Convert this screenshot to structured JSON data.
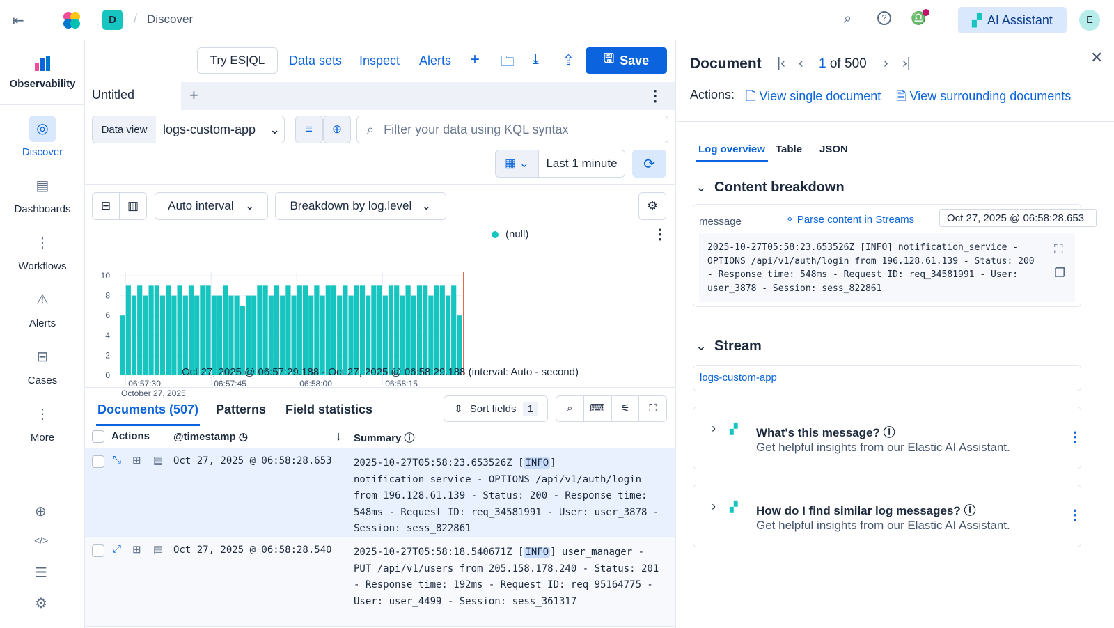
{
  "header": {
    "space_initial": "D",
    "breadcrumb": "Discover",
    "ai_button": "AI Assistant",
    "avatar": "E"
  },
  "nav": {
    "brand": "Observability",
    "items": [
      {
        "label": "Discover",
        "icon": "compass-icon",
        "active": true
      },
      {
        "label": "Dashboards",
        "icon": "dashboard-icon"
      },
      {
        "label": "Workflows",
        "icon": "workflow-icon"
      },
      {
        "label": "Alerts",
        "icon": "warning-icon"
      },
      {
        "label": "Cases",
        "icon": "briefcase-icon"
      },
      {
        "label": "More",
        "icon": "dots-icon"
      }
    ]
  },
  "toolbar": {
    "try_esql": "Try ES|QL",
    "data_sets": "Data sets",
    "inspect": "Inspect",
    "alerts": "Alerts",
    "save": "Save"
  },
  "tab": {
    "title": "Untitled"
  },
  "query": {
    "data_view_label": "Data view",
    "data_view": "logs-custom-app",
    "placeholder": "Filter your data using KQL syntax",
    "time": "Last 1 minute"
  },
  "chart_controls": {
    "interval": "Auto interval",
    "breakdown": "Breakdown by log.level"
  },
  "chart_data": {
    "type": "bar",
    "ylim": [
      0,
      10
    ],
    "yticks": [
      "0",
      "2",
      "4",
      "6",
      "8",
      "10"
    ],
    "xticks": [
      "06:57:30",
      "06:57:45",
      "06:58:00",
      "06:58:15"
    ],
    "xsub": "October 27, 2025",
    "legend": "(null)",
    "color": "#16c5c0",
    "series": [
      {
        "name": "(null)",
        "values": [
          6,
          9,
          8,
          9,
          8,
          9,
          9,
          8,
          9,
          8,
          9,
          8,
          9,
          8,
          9,
          9,
          8,
          8,
          9,
          8,
          8,
          7,
          8,
          8,
          9,
          9,
          8,
          9,
          8,
          9,
          8,
          9,
          9,
          8,
          9,
          8,
          9,
          9,
          8,
          9,
          8,
          9,
          9,
          8,
          9,
          9,
          8,
          9,
          9,
          8,
          9,
          8,
          9,
          9,
          8,
          9,
          9,
          8,
          9,
          6
        ]
      }
    ],
    "range_label": "Oct 27, 2025 @ 06:57:29.188 - Oct 27, 2025 @ 06:58:29.188 (interval: Auto - second)"
  },
  "results": {
    "tabs": [
      "Documents (507)",
      "Patterns",
      "Field statistics"
    ],
    "sort_fields": "Sort fields",
    "sort_count": "1",
    "columns": {
      "actions": "Actions",
      "timestamp": "@timestamp",
      "summary": "Summary"
    },
    "rows": [
      {
        "timestamp": "Oct 27, 2025 @ 06:58:28.653",
        "pre": "2025-10-27T05:58:23.653526Z [",
        "level": "INFO",
        "post": "] notification_service - OPTIONS /api/v1/auth/login from 196.128.61.139 - Status: 200 - Response time: 548ms - Request ID: req_34581991 - User: user_3878 - Session: sess_822861"
      },
      {
        "timestamp": "Oct 27, 2025 @ 06:58:28.540",
        "pre": "2025-10-27T05:58:18.540671Z [",
        "level": "INFO",
        "post": "] user_manager - PUT /api/v1/users from 205.158.178.240 - Status: 201 - Response time: 192ms - Request ID: req_95164775 - User: user_4499 - Session: sess_361317"
      }
    ]
  },
  "flyout": {
    "title": "Document",
    "current": "1",
    "of": "of",
    "total": "500",
    "actions_label": "Actions:",
    "view_single": "View single document",
    "view_surrounding": "View surrounding documents",
    "tabs": [
      "Log overview",
      "Table",
      "JSON"
    ],
    "content_title": "Content breakdown",
    "field": "message",
    "parse": "Parse content in Streams",
    "timestamp": "Oct 27, 2025 @ 06:58:28.653",
    "message": "2025-10-27T05:58:23.653526Z [INFO] notification_service - OPTIONS /api/v1/auth/login from 196.128.61.139 - Status: 200 - Response time: 548ms - Request ID: req_34581991 - User: user_3878 - Session: sess_822861",
    "stream_title": "Stream",
    "stream": "logs-custom-app",
    "ai": [
      {
        "q": "What's this message?",
        "sub": "Get helpful insights from our Elastic AI Assistant."
      },
      {
        "q": "How do I find similar log messages?",
        "sub": "Get helpful insights from our Elastic AI Assistant."
      }
    ]
  }
}
